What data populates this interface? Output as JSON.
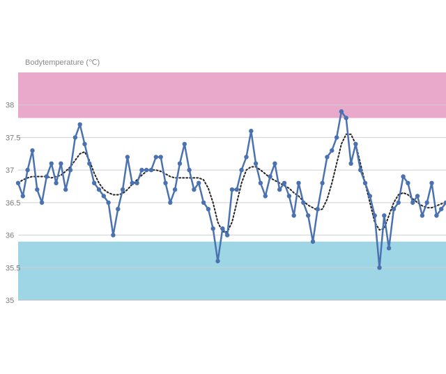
{
  "chart_data": {
    "type": "line",
    "ylabel": "Bodytemperature (℃)",
    "ylim": [
      35,
      38.5
    ],
    "yticks": [
      "35",
      "35.5",
      "36",
      "36.5",
      "37",
      "37.5",
      "38"
    ],
    "grid": true,
    "bands": [
      {
        "from": 37.8,
        "to": 38.5,
        "color": "#e8a9cb"
      },
      {
        "from": 35.0,
        "to": 35.9,
        "color": "#9ed6e6"
      }
    ],
    "colors": {
      "line": "#4a72b0",
      "trend": "#222222",
      "grid": "#cfcfcf",
      "axis": "#bdbdbd"
    },
    "series": [
      {
        "kind": "measured",
        "values": [
          36.8,
          36.6,
          37.0,
          37.3,
          36.7,
          36.5,
          36.9,
          37.1,
          36.8,
          37.1,
          36.7,
          37.0,
          37.5,
          37.7,
          37.4,
          37.1,
          36.8,
          36.7,
          36.6,
          36.5,
          36.0,
          36.4,
          36.7,
          37.2,
          36.8,
          36.8,
          37.0,
          37.0,
          37.0,
          37.2,
          37.2,
          36.8,
          36.5,
          36.7,
          37.1,
          37.4,
          37.0,
          36.7,
          36.8,
          36.5,
          36.4,
          36.1,
          35.6,
          36.1,
          36.0,
          36.7,
          36.7,
          37.0,
          37.2,
          37.6,
          37.1,
          36.8,
          36.6,
          36.9,
          37.1,
          36.7,
          36.8,
          36.6,
          36.3,
          36.8,
          36.5,
          36.3,
          35.9,
          36.4,
          36.8,
          37.2,
          37.3,
          37.5,
          37.9,
          37.8,
          37.1,
          37.4,
          37.0,
          36.8,
          36.6,
          36.3,
          35.5,
          36.3,
          35.8,
          36.4,
          36.5,
          36.9,
          36.8,
          36.5,
          36.6,
          36.3,
          36.5,
          36.8,
          36.3,
          36.4,
          36.5
        ]
      },
      {
        "kind": "trend",
        "values": [
          36.8,
          36.85,
          36.88,
          36.9,
          36.9,
          36.9,
          36.9,
          36.88,
          36.9,
          36.92,
          36.98,
          37.05,
          37.15,
          37.25,
          37.28,
          37.15,
          36.95,
          36.8,
          36.7,
          36.65,
          36.62,
          36.62,
          36.64,
          36.7,
          36.78,
          36.85,
          36.92,
          36.98,
          37.0,
          37.0,
          36.98,
          36.94,
          36.9,
          36.88,
          36.88,
          36.88,
          36.88,
          36.88,
          36.88,
          36.85,
          36.72,
          36.5,
          36.2,
          36.05,
          36.05,
          36.2,
          36.5,
          36.8,
          37.0,
          37.05,
          37.05,
          37.0,
          36.94,
          36.88,
          36.84,
          36.8,
          36.76,
          36.72,
          36.65,
          36.6,
          36.52,
          36.46,
          36.42,
          36.38,
          36.4,
          36.55,
          36.8,
          37.1,
          37.4,
          37.55,
          37.55,
          37.4,
          37.1,
          36.8,
          36.5,
          36.2,
          36.08,
          36.1,
          36.3,
          36.5,
          36.62,
          36.65,
          36.62,
          36.56,
          36.5,
          36.45,
          36.42,
          36.42,
          36.45,
          36.48,
          36.5
        ]
      }
    ]
  }
}
